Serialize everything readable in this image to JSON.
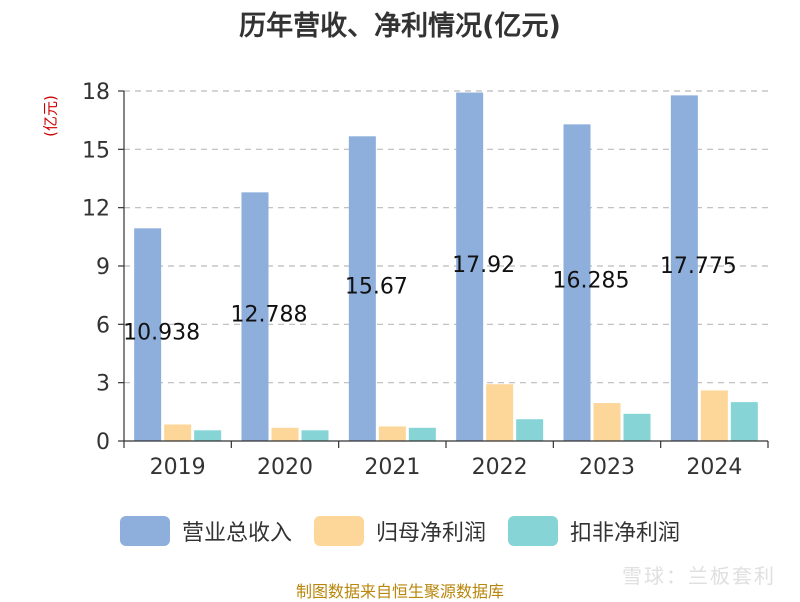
{
  "title": "历年营收、净利情况(亿元)",
  "y_unit_label": "(亿元)",
  "source_text": "制图数据来自恒生聚源数据库",
  "watermark_text": "雪球：兰板套利",
  "colors": {
    "revenue": "#8eaedc",
    "net_profit": "#fdd699",
    "deducted_profit": "#86d4d6",
    "grid": "#bbbbbb",
    "axis": "#333333",
    "title": "#333333",
    "unit": "#cc0000",
    "source": "#b8860b"
  },
  "chart_data": {
    "type": "bar",
    "categories": [
      "2019",
      "2020",
      "2021",
      "2022",
      "2023",
      "2024"
    ],
    "ylim": [
      0,
      18
    ],
    "yticks": [
      0,
      3,
      6,
      9,
      12,
      15,
      18
    ],
    "grid": true,
    "legend_position": "bottom",
    "series": [
      {
        "name": "营业总收入",
        "values": [
          10.938,
          12.788,
          15.67,
          17.92,
          16.285,
          17.775
        ],
        "labels": [
          "10.938",
          "12.788",
          "15.67",
          "17.92",
          "16.285",
          "17.775"
        ]
      },
      {
        "name": "归母净利润",
        "values": [
          0.85,
          0.68,
          0.75,
          2.92,
          1.95,
          2.6
        ]
      },
      {
        "name": "扣非净利润",
        "values": [
          0.55,
          0.55,
          0.68,
          1.12,
          1.4,
          2.0
        ]
      }
    ]
  }
}
